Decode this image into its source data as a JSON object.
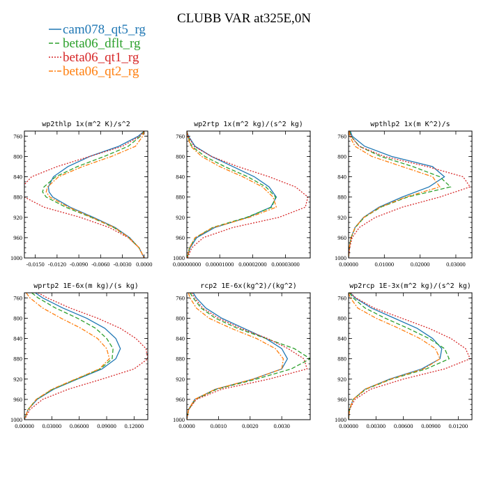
{
  "title": "CLUBB VAR at325E,0N",
  "legend": [
    {
      "name": "cam078_qt5_rg",
      "color": "#1f77b4",
      "dash": ""
    },
    {
      "name": "beta06_dflt_rg",
      "color": "#2ca02c",
      "dash": "6,3"
    },
    {
      "name": "beta06_qt1_rg",
      "color": "#d62728",
      "dash": "2,2"
    },
    {
      "name": "beta06_qt2_rg",
      "color": "#ff7f0e",
      "dash": "6,2,2,2"
    }
  ],
  "chart_data": [
    {
      "type": "line",
      "title": "wp2thlp  1x(m^2 K)/s^2",
      "xlim": [
        -0.0165,
        0.0005
      ],
      "ylim": [
        1000,
        750
      ],
      "xticks": [
        -0.015,
        -0.012,
        -0.009,
        -0.006,
        -0.003,
        0.0
      ],
      "xtick_labels": [
        "-0.0150",
        "-0.0120",
        "-0.0090",
        "-0.0060",
        "-0.0030",
        "0.0000"
      ],
      "yticks": [
        760,
        800,
        840,
        880,
        920,
        960,
        1000
      ],
      "y": [
        750,
        760,
        780,
        800,
        820,
        840,
        860,
        870,
        880,
        900,
        920,
        940,
        960,
        980,
        1000
      ],
      "series": [
        {
          "name": "cam078_qt5_rg",
          "x": [
            0.0,
            -0.0008,
            -0.0035,
            -0.0075,
            -0.0105,
            -0.0125,
            -0.0132,
            -0.0131,
            -0.0126,
            -0.0102,
            -0.007,
            -0.004,
            -0.002,
            -0.0007,
            0.0
          ]
        },
        {
          "name": "beta06_dflt_rg",
          "x": [
            0.0,
            -0.0005,
            -0.0022,
            -0.0055,
            -0.0092,
            -0.0122,
            -0.0138,
            -0.014,
            -0.0135,
            -0.0108,
            -0.0073,
            -0.0042,
            -0.0021,
            -0.0007,
            0.0
          ]
        },
        {
          "name": "beta06_qt1_rg",
          "x": [
            0.0,
            -0.0006,
            -0.003,
            -0.0075,
            -0.012,
            -0.0155,
            -0.0168,
            -0.017,
            -0.0165,
            -0.0138,
            -0.0088,
            -0.0048,
            -0.0022,
            -0.0007,
            0.0
          ]
        },
        {
          "name": "beta06_qt2_rg",
          "x": [
            0.0,
            -0.0002,
            -0.0012,
            -0.0045,
            -0.0085,
            -0.0118,
            -0.0133,
            -0.0135,
            -0.013,
            -0.0104,
            -0.0072,
            -0.0041,
            -0.0021,
            -0.0007,
            0.0
          ]
        }
      ]
    },
    {
      "type": "line",
      "title": "wp2rtp  1x(m^2 kg)/(s^2 kg)",
      "xlim": [
        0.0,
        3.75e-05
      ],
      "ylim": [
        1000,
        750
      ],
      "xticks": [
        0.0,
        1e-05,
        2e-05,
        3e-05
      ],
      "xtick_labels": [
        "0.00000000",
        "0.00001000",
        "0.00002000",
        "0.00003000"
      ],
      "yticks": [
        760,
        800,
        840,
        880,
        920,
        960,
        1000
      ],
      "y": [
        750,
        760,
        780,
        800,
        820,
        840,
        860,
        880,
        900,
        920,
        940,
        960,
        980,
        1000
      ],
      "series": [
        {
          "name": "cam078_qt5_rg",
          "x": [
            0.0,
            5e-07,
            2.5e-06,
            7.5e-06,
            1.4e-05,
            2.05e-05,
            2.5e-05,
            2.72e-05,
            2.55e-05,
            1.85e-05,
            8.5e-06,
            3e-06,
            1e-06,
            1e-07
          ]
        },
        {
          "name": "beta06_dflt_rg",
          "x": [
            0.0,
            3e-07,
            1.5e-06,
            5.5e-06,
            1.15e-05,
            1.85e-05,
            2.4e-05,
            2.7e-05,
            2.58e-05,
            1.82e-05,
            7.8e-06,
            2.6e-06,
            8e-07,
            1e-07
          ]
        },
        {
          "name": "beta06_qt1_rg",
          "x": [
            0.0,
            4e-07,
            2.2e-06,
            7.5e-06,
            1.55e-05,
            2.5e-05,
            3.3e-05,
            3.68e-05,
            3.6e-05,
            2.8e-05,
            1.4e-05,
            5e-06,
            1.5e-06,
            2e-07
          ]
        },
        {
          "name": "beta06_qt2_rg",
          "x": [
            0.0,
            2e-07,
            1.2e-06,
            4.5e-06,
            1e-05,
            1.7e-05,
            2.3e-05,
            2.62e-05,
            2.72e-05,
            1.9e-05,
            8e-06,
            2.5e-06,
            8e-07,
            1e-07
          ]
        }
      ]
    },
    {
      "type": "line",
      "title": "wpthlp2  1x(m K^2)/s",
      "xlim": [
        0.0,
        0.0345
      ],
      "ylim": [
        1000,
        750
      ],
      "xticks": [
        0.0,
        0.01,
        0.02,
        0.03
      ],
      "xtick_labels": [
        "0.00000",
        "0.01000",
        "0.02000",
        "0.03000"
      ],
      "yticks": [
        760,
        800,
        840,
        880,
        920,
        960,
        1000
      ],
      "y": [
        750,
        760,
        780,
        800,
        820,
        840,
        860,
        880,
        900,
        920,
        940,
        960,
        980,
        1000
      ],
      "series": [
        {
          "name": "cam078_qt5_rg",
          "x": [
            0.0005,
            0.001,
            0.0045,
            0.012,
            0.0235,
            0.0268,
            0.0225,
            0.015,
            0.0085,
            0.0042,
            0.0018,
            0.0007,
            0.0002,
            0.0
          ]
        },
        {
          "name": "beta06_dflt_rg",
          "x": [
            0.0003,
            0.0007,
            0.003,
            0.009,
            0.018,
            0.0255,
            0.0285,
            0.0165,
            0.009,
            0.0044,
            0.0019,
            0.0007,
            0.0002,
            0.0
          ]
        },
        {
          "name": "beta06_qt1_rg",
          "x": [
            0.0002,
            0.0006,
            0.003,
            0.01,
            0.022,
            0.032,
            0.034,
            0.0255,
            0.015,
            0.0075,
            0.003,
            0.001,
            0.0003,
            0.0
          ]
        },
        {
          "name": "beta06_qt2_rg",
          "x": [
            0.0001,
            0.0003,
            0.0018,
            0.0065,
            0.015,
            0.0235,
            0.0255,
            0.016,
            0.0088,
            0.0043,
            0.0018,
            0.0007,
            0.0002,
            0.0
          ]
        }
      ]
    },
    {
      "type": "line",
      "title": "wprtp2  1E-6x(m kg)/(s kg)",
      "xlim": [
        0.0,
        0.135
      ],
      "ylim": [
        1000,
        750
      ],
      "xticks": [
        0.0,
        0.03,
        0.06,
        0.09,
        0.12
      ],
      "xtick_labels": [
        "0.00000",
        "0.03000",
        "0.06000",
        "0.09000",
        "0.12000"
      ],
      "yticks": [
        760,
        800,
        840,
        880,
        920,
        960,
        1000
      ],
      "y": [
        750,
        760,
        780,
        800,
        820,
        840,
        860,
        880,
        900,
        920,
        940,
        960,
        980,
        1000
      ],
      "series": [
        {
          "name": "cam078_qt5_rg",
          "x": [
            0.012,
            0.02,
            0.042,
            0.068,
            0.088,
            0.1,
            0.105,
            0.1,
            0.085,
            0.058,
            0.032,
            0.014,
            0.004,
            0.0
          ]
        },
        {
          "name": "beta06_dflt_rg",
          "x": [
            0.008,
            0.015,
            0.034,
            0.058,
            0.078,
            0.09,
            0.097,
            0.096,
            0.083,
            0.057,
            0.031,
            0.013,
            0.004,
            0.0
          ]
        },
        {
          "name": "beta06_qt1_rg",
          "x": [
            0.015,
            0.025,
            0.05,
            0.08,
            0.105,
            0.122,
            0.133,
            0.135,
            0.12,
            0.085,
            0.048,
            0.02,
            0.006,
            0.0
          ]
        },
        {
          "name": "beta06_qt2_rg",
          "x": [
            0.002,
            0.006,
            0.02,
            0.04,
            0.062,
            0.08,
            0.09,
            0.093,
            0.082,
            0.056,
            0.03,
            0.013,
            0.004,
            0.0
          ]
        }
      ]
    },
    {
      "type": "line",
      "title": "rcp2  1E-6x(kg^2)/(kg^2)",
      "xlim": [
        0.0,
        0.0039
      ],
      "ylim": [
        1000,
        750
      ],
      "xticks": [
        0.0,
        0.001,
        0.002,
        0.003
      ],
      "xtick_labels": [
        "0.0000",
        "0.0010",
        "0.0020",
        "0.0030"
      ],
      "yticks": [
        760,
        800,
        840,
        880,
        920,
        960,
        1000
      ],
      "y": [
        750,
        760,
        780,
        800,
        820,
        840,
        860,
        880,
        900,
        920,
        940,
        960,
        980,
        1000
      ],
      "series": [
        {
          "name": "cam078_qt5_rg",
          "x": [
            0.0002,
            0.0003,
            0.0006,
            0.0011,
            0.0018,
            0.0025,
            0.003,
            0.00318,
            0.003,
            0.0021,
            0.0009,
            0.00025,
            5e-05,
            0.0
          ]
        },
        {
          "name": "beta06_dflt_rg",
          "x": [
            0.0001,
            0.0002,
            0.00045,
            0.0009,
            0.0016,
            0.0025,
            0.0034,
            0.0039,
            0.0033,
            0.0022,
            0.00095,
            0.00028,
            6e-05,
            0.0
          ]
        },
        {
          "name": "beta06_qt1_rg",
          "x": [
            0.00015,
            0.00025,
            0.0005,
            0.001,
            0.0017,
            0.00255,
            0.0032,
            0.0037,
            0.0038,
            0.0026,
            0.0011,
            0.0003,
            6e-05,
            0.0
          ]
        },
        {
          "name": "beta06_qt2_rg",
          "x": [
            5e-05,
            0.0001,
            0.0003,
            0.0007,
            0.0014,
            0.0022,
            0.0028,
            0.00305,
            0.003,
            0.0021,
            0.0009,
            0.00025,
            5e-05,
            0.0
          ]
        }
      ]
    },
    {
      "type": "line",
      "title": "wp2rcp  1E-3x(m^2 kg)/(s^2 kg)",
      "xlim": [
        0.0,
        0.0135
      ],
      "ylim": [
        1000,
        750
      ],
      "xticks": [
        0.0,
        0.003,
        0.006,
        0.009,
        0.012
      ],
      "xtick_labels": [
        "0.00000",
        "0.00300",
        "0.00600",
        "0.00900",
        "0.01200"
      ],
      "yticks": [
        760,
        800,
        840,
        880,
        920,
        960,
        1000
      ],
      "y": [
        750,
        760,
        780,
        800,
        820,
        840,
        860,
        880,
        900,
        920,
        940,
        960,
        980,
        1000
      ],
      "series": [
        {
          "name": "cam078_qt5_rg",
          "x": [
            0.0002,
            0.0007,
            0.0025,
            0.005,
            0.0075,
            0.0092,
            0.0102,
            0.01,
            0.008,
            0.0045,
            0.0018,
            0.0005,
            0.0001,
            0.0
          ]
        },
        {
          "name": "beta06_dflt_rg",
          "x": [
            0.0001,
            0.0005,
            0.0018,
            0.004,
            0.0065,
            0.0088,
            0.0105,
            0.011,
            0.0085,
            0.0047,
            0.0019,
            0.0005,
            0.0001,
            0.0
          ]
        },
        {
          "name": "beta06_qt1_rg",
          "x": [
            0.0002,
            0.0008,
            0.0028,
            0.0058,
            0.0088,
            0.0112,
            0.0128,
            0.0133,
            0.0105,
            0.006,
            0.0024,
            0.0007,
            0.0001,
            0.0
          ]
        },
        {
          "name": "beta06_qt2_rg",
          "x": [
            0.0,
            0.0002,
            0.001,
            0.003,
            0.0055,
            0.0078,
            0.0095,
            0.01,
            0.0082,
            0.0046,
            0.0018,
            0.0005,
            0.0001,
            0.0
          ]
        }
      ]
    }
  ]
}
